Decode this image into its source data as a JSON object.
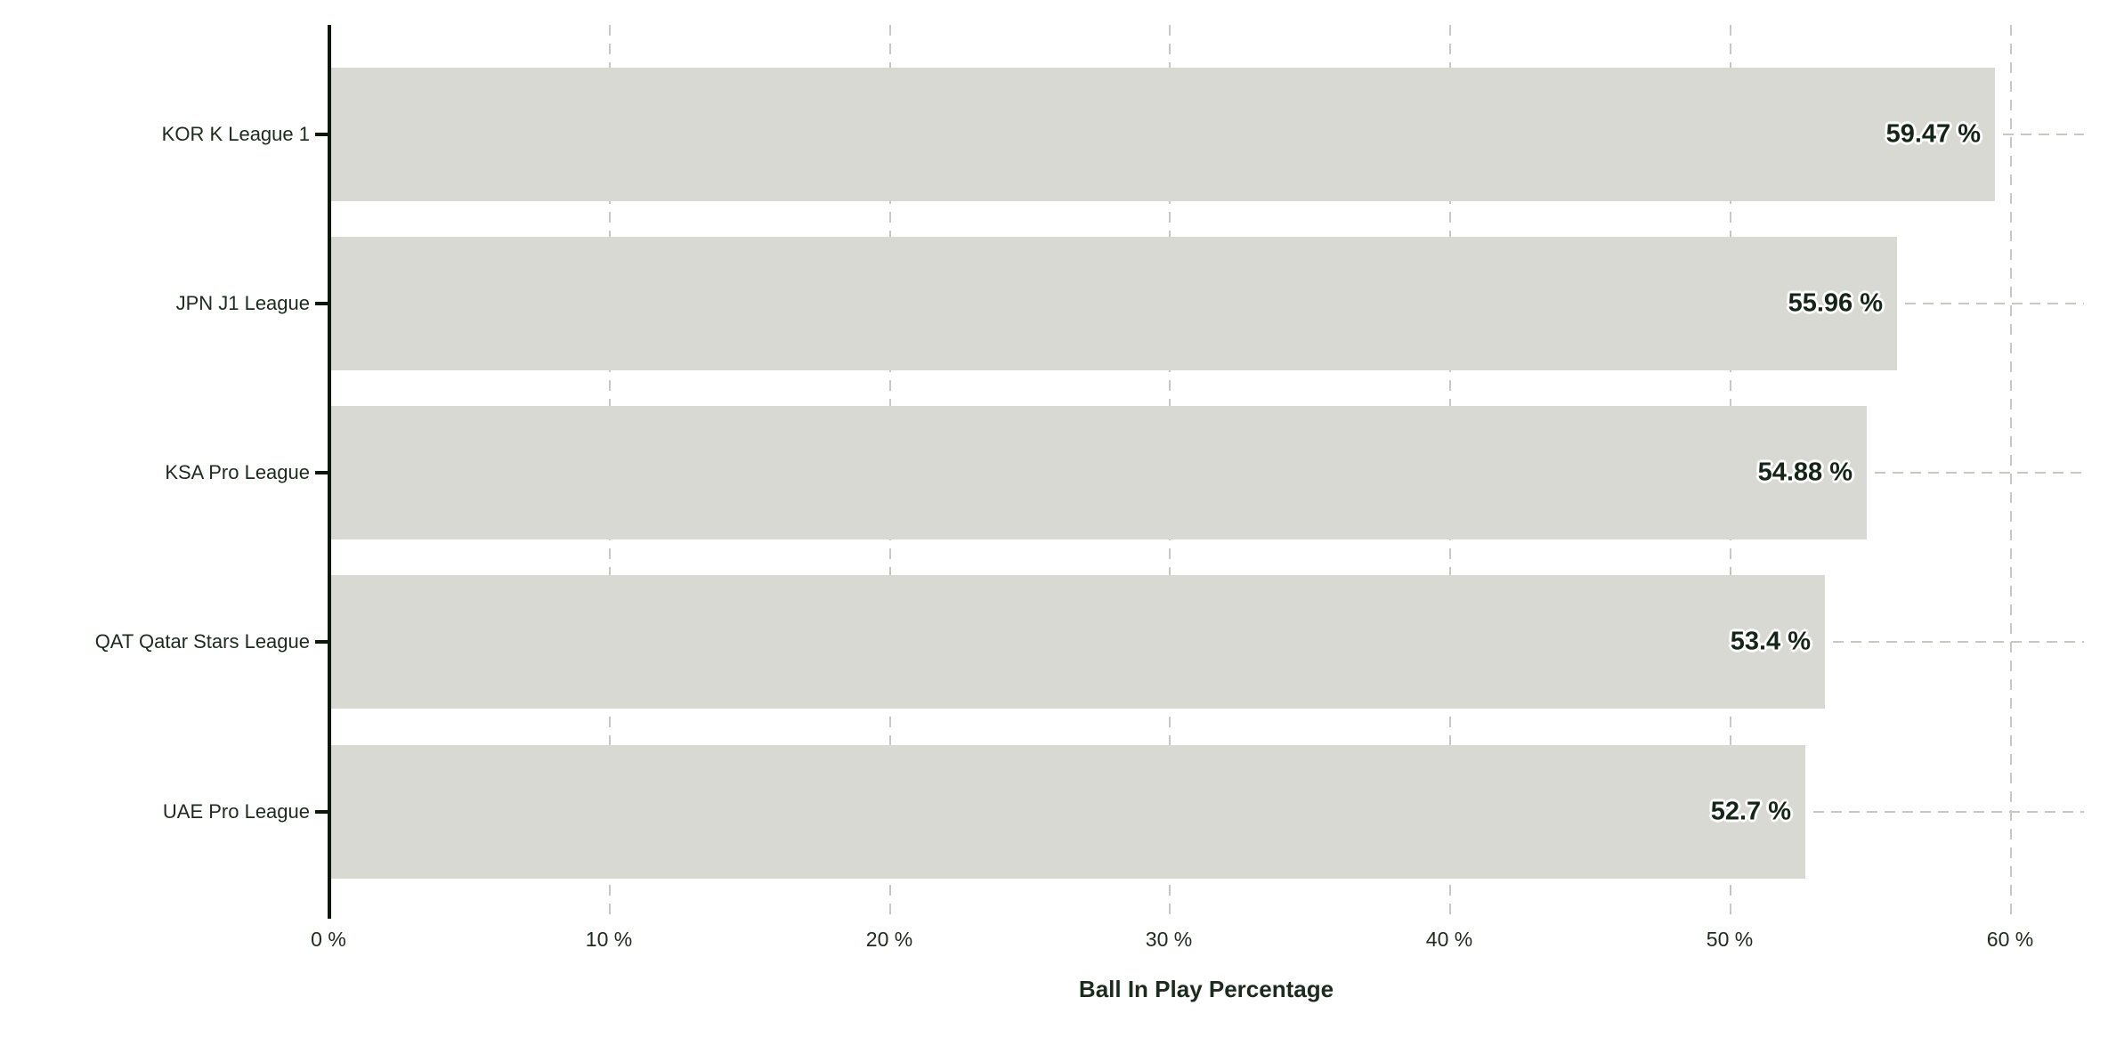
{
  "chart_data": {
    "type": "bar",
    "orientation": "horizontal",
    "title": "",
    "xlabel": "Ball In Play Percentage",
    "ylabel": "",
    "categories": [
      "KOR K League 1",
      "JPN J1 League",
      "KSA Pro League",
      "QAT Qatar Stars League",
      "UAE Pro League"
    ],
    "values": [
      59.47,
      55.96,
      54.88,
      53.4,
      52.7
    ],
    "value_labels": [
      "59.47 %",
      "55.96 %",
      "54.88 %",
      "53.4 %",
      "52.7 %"
    ],
    "x_ticks": {
      "values": [
        0,
        10,
        20,
        30,
        40,
        50,
        60
      ],
      "labels": [
        "0 %",
        "10 %",
        "20 %",
        "30 %",
        "40 %",
        "50 %",
        "60 %"
      ]
    },
    "xlim": [
      0,
      62.6
    ],
    "grid": "dashed vertical gridlines at each x tick; dashed horizontal leader line from each bar end to right edge",
    "legend": "none",
    "colors": {
      "bar_fill": "#d8d9d2",
      "axis_line": "#0b180c",
      "label_text": "#1c2b1e",
      "value_label_text": "#152618",
      "value_label_halo": "#ffffff",
      "gridline": "#c5c8c3",
      "background": "#ffffff"
    }
  }
}
